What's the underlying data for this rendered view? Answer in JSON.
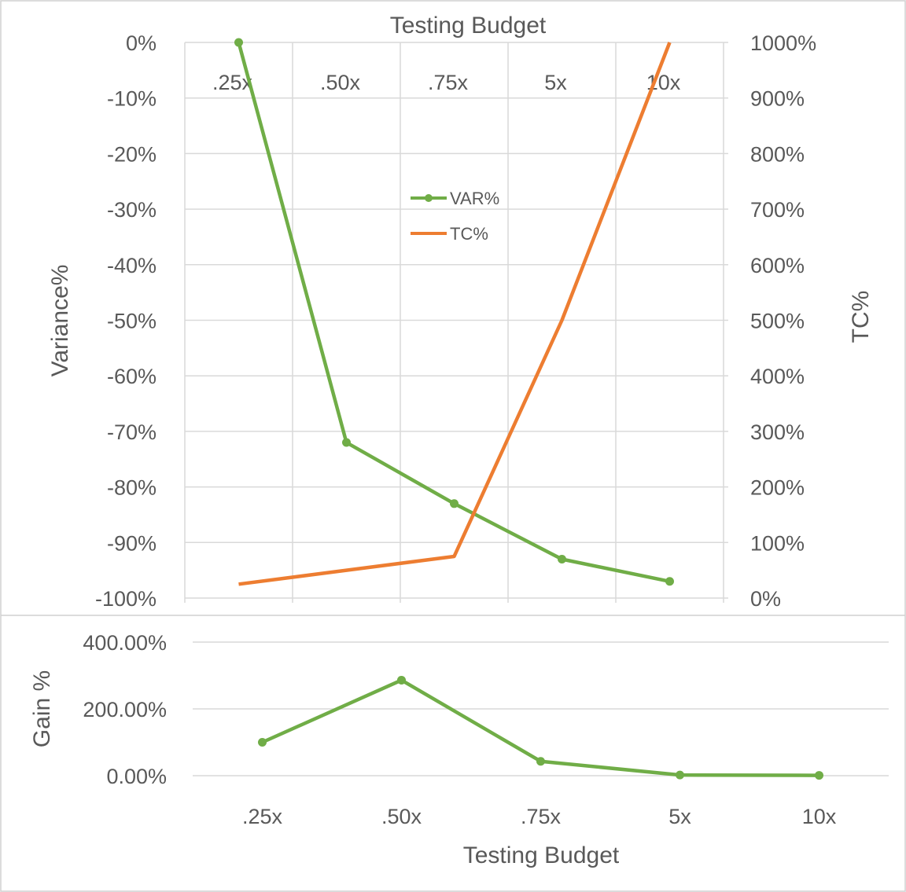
{
  "chart_data": [
    {
      "type": "line",
      "x_axis": {
        "title": "Testing Budget",
        "position": "top",
        "categories": [
          ".25x",
          ".50x",
          ".75x",
          "5x",
          "10x"
        ]
      },
      "y_axis_left": {
        "title": "Variance%",
        "range": [
          -100,
          0
        ],
        "step": 10,
        "unit": "%",
        "tick_labels": [
          "0%",
          "-10%",
          "-20%",
          "-30%",
          "-40%",
          "-50%",
          "-60%",
          "-70%",
          "-80%",
          "-90%",
          "-100%"
        ]
      },
      "y_axis_right": {
        "title": "TC%",
        "range": [
          0,
          1000
        ],
        "step": 100,
        "unit": "%",
        "tick_labels": [
          "1000%",
          "900%",
          "800%",
          "700%",
          "600%",
          "500%",
          "400%",
          "300%",
          "200%",
          "100%",
          "0%"
        ]
      },
      "grid": true,
      "legend": {
        "placement": "center-left",
        "entries": [
          "VAR%",
          "TC%"
        ]
      },
      "series": [
        {
          "name": "VAR%",
          "axis": "left",
          "color": "#70ad47",
          "markers": true,
          "values": [
            0,
            -72,
            -83,
            -93,
            -97
          ]
        },
        {
          "name": "TC%",
          "axis": "right",
          "color": "#ed7d31",
          "markers": false,
          "values": [
            25,
            50,
            75,
            500,
            1000
          ]
        }
      ]
    },
    {
      "type": "line",
      "x_axis": {
        "title": "Testing Budget",
        "position": "bottom",
        "categories": [
          ".25x",
          ".50x",
          ".75x",
          "5x",
          "10x"
        ]
      },
      "y_axis": {
        "title": "Gain %",
        "range": [
          0,
          400
        ],
        "tick_labels": [
          "400.00%",
          "200.00%",
          "0.00%"
        ]
      },
      "grid": true,
      "series": [
        {
          "name": "",
          "color": "#70ad47",
          "markers": true,
          "values": [
            100,
            286,
            43,
            2,
            1
          ]
        }
      ]
    }
  ]
}
